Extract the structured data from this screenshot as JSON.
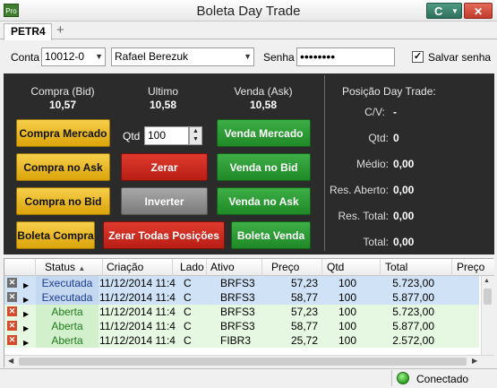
{
  "window": {
    "title": "Boleta Day Trade",
    "app_icon_text": "Pro",
    "c_button": "C",
    "close": "✕"
  },
  "tabs": [
    {
      "label": "PETR4"
    }
  ],
  "tab_add": "+",
  "account": {
    "conta_label": "Conta",
    "conta_value": "10012-0",
    "name_value": "Rafael Berezuk",
    "senha_label": "Senha",
    "senha_value": "••••••••",
    "save_label": "Salvar senha",
    "save_checked": true
  },
  "quotes": {
    "bid_label": "Compra (Bid)",
    "bid_value": "10,57",
    "last_label": "Ultimo",
    "last_value": "10,58",
    "ask_label": "Venda (Ask)",
    "ask_value": "10,58"
  },
  "buttons": {
    "compra_mercado": "Compra Mercado",
    "compra_ask": "Compra no Ask",
    "compra_bid": "Compra no Bid",
    "boleta_compra": "Boleta Compra",
    "zerar": "Zerar",
    "inverter": "Inverter",
    "zerar_todas": "Zerar Todas Posições",
    "venda_mercado": "Venda Mercado",
    "venda_bid": "Venda no Bid",
    "venda_ask": "Venda no Ask",
    "boleta_venda": "Boleta Venda"
  },
  "qtd": {
    "label": "Qtd",
    "value": "100"
  },
  "position": {
    "title": "Posição Day Trade:",
    "cv_label": "C/V:",
    "cv_value": "-",
    "qtd_label": "Qtd:",
    "qtd_value": "0",
    "medio_label": "Médio:",
    "medio_value": "0,00",
    "res_aberto_label": "Res. Aberto:",
    "res_aberto_value": "0,00",
    "res_total_label": "Res. Total:",
    "res_total_value": "0,00",
    "total_label": "Total:",
    "total_value": "0,00"
  },
  "grid": {
    "columns": [
      "Status",
      "Criação",
      "Lado",
      "Ativo",
      "Preço",
      "Qtd",
      "Total",
      "Preço"
    ],
    "rows": [
      {
        "status": "Executada",
        "criacao": "11/12/2014 11:4",
        "lado": "C",
        "ativo": "BRFS3",
        "preco": "57,23",
        "qtd": "100",
        "total": "5.723,00"
      },
      {
        "status": "Executada",
        "criacao": "11/12/2014 11:4",
        "lado": "C",
        "ativo": "BRFS3",
        "preco": "58,77",
        "qtd": "100",
        "total": "5.877,00"
      },
      {
        "status": "Aberta",
        "criacao": "11/12/2014 11:4",
        "lado": "C",
        "ativo": "BRFS3",
        "preco": "57,23",
        "qtd": "100",
        "total": "5.723,00"
      },
      {
        "status": "Aberta",
        "criacao": "11/12/2014 11:4",
        "lado": "C",
        "ativo": "BRFS3",
        "preco": "58,77",
        "qtd": "100",
        "total": "5.877,00"
      },
      {
        "status": "Aberta",
        "criacao": "11/12/2014 11:4",
        "lado": "C",
        "ativo": "FIBR3",
        "preco": "25,72",
        "qtd": "100",
        "total": "2.572,00"
      }
    ]
  },
  "status": {
    "connection": "Conectado"
  }
}
